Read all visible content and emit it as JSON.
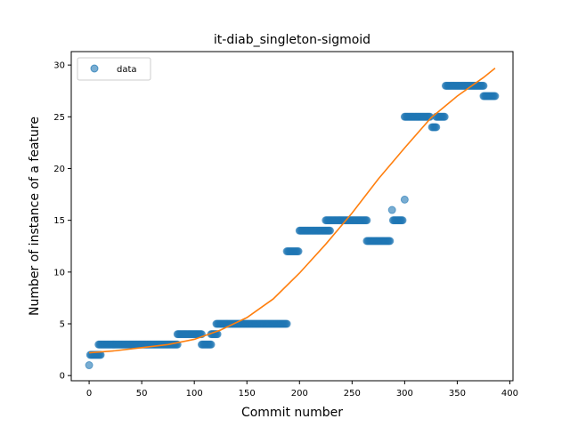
{
  "chart_data": {
    "type": "scatter",
    "title": "it-diab_singleton-sigmoid",
    "xlabel": "Commit number",
    "ylabel": "Number of instance of a feature",
    "xlim": [
      -17,
      403
    ],
    "ylim": [
      -0.5,
      31.3
    ],
    "xticks": [
      0,
      50,
      100,
      150,
      200,
      250,
      300,
      350,
      400
    ],
    "yticks": [
      0,
      5,
      10,
      15,
      20,
      25,
      30
    ],
    "grid": false,
    "legend": {
      "placement": "top-left",
      "entries": [
        "data"
      ]
    },
    "colors": {
      "data": "#1f77b4",
      "fit": "#ff7f0e"
    },
    "series": [
      {
        "name": "data",
        "kind": "points",
        "segments": [
          {
            "x_from": 0,
            "x_to": 0,
            "y": 1
          },
          {
            "x_from": 1,
            "x_to": 11,
            "y": 2
          },
          {
            "x_from": 9,
            "x_to": 84,
            "y": 3
          },
          {
            "x_from": 84,
            "x_to": 107,
            "y": 4
          },
          {
            "x_from": 107,
            "x_to": 116,
            "y": 3
          },
          {
            "x_from": 116,
            "x_to": 122,
            "y": 4
          },
          {
            "x_from": 121,
            "x_to": 188,
            "y": 5
          },
          {
            "x_from": 188,
            "x_to": 199,
            "y": 12
          },
          {
            "x_from": 200,
            "x_to": 229,
            "y": 14
          },
          {
            "x_from": 225,
            "x_to": 264,
            "y": 15
          },
          {
            "x_from": 264,
            "x_to": 286,
            "y": 13
          },
          {
            "x_from": 288,
            "x_to": 288,
            "y": 16
          },
          {
            "x_from": 289,
            "x_to": 298,
            "y": 15
          },
          {
            "x_from": 300,
            "x_to": 300,
            "y": 17
          },
          {
            "x_from": 300,
            "x_to": 324,
            "y": 25
          },
          {
            "x_from": 326,
            "x_to": 330,
            "y": 24
          },
          {
            "x_from": 330,
            "x_to": 338,
            "y": 25
          },
          {
            "x_from": 339,
            "x_to": 375,
            "y": 28
          },
          {
            "x_from": 375,
            "x_to": 386,
            "y": 27
          }
        ]
      },
      {
        "name": "",
        "kind": "line",
        "points": [
          [
            0,
            2.2
          ],
          [
            25,
            2.4
          ],
          [
            50,
            2.7
          ],
          [
            75,
            3.0
          ],
          [
            100,
            3.5
          ],
          [
            125,
            4.4
          ],
          [
            150,
            5.6
          ],
          [
            175,
            7.4
          ],
          [
            200,
            9.9
          ],
          [
            225,
            12.7
          ],
          [
            250,
            15.7
          ],
          [
            275,
            19.0
          ],
          [
            300,
            22.0
          ],
          [
            325,
            24.9
          ],
          [
            350,
            27.0
          ],
          [
            375,
            28.8
          ],
          [
            386,
            29.7
          ]
        ]
      }
    ]
  }
}
